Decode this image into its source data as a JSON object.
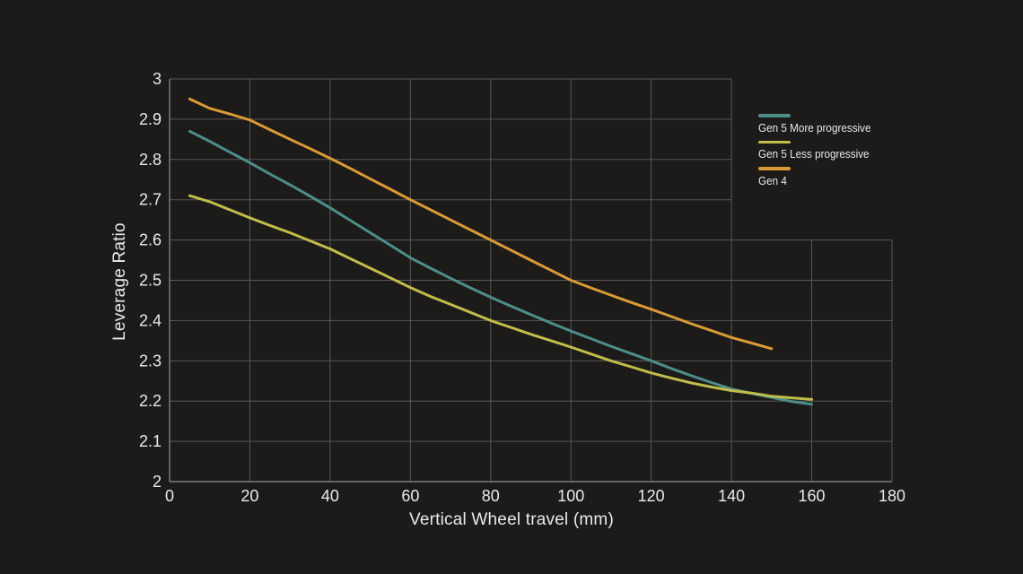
{
  "colors": {
    "background": "#1c1b19",
    "grid": "#585858",
    "axis": "#8f8f8f",
    "text": "#eaeaea"
  },
  "chart_data": {
    "type": "line",
    "title": "",
    "xlabel": "Vertical Wheel travel (mm)",
    "ylabel": "Leverage Ratio",
    "xlim": [
      0,
      180
    ],
    "ylim": [
      2,
      3
    ],
    "grid": "on",
    "grid_break": {
      "x": 140,
      "y": 2.6
    },
    "legend_position": "top-right",
    "xticks": {
      "values": [
        0,
        20,
        40,
        60,
        80,
        100,
        120,
        140,
        160,
        180
      ],
      "labels": [
        "0",
        "20",
        "40",
        "60",
        "80",
        "100",
        "120",
        "140",
        "160",
        "180"
      ]
    },
    "yticks": {
      "values": [
        2,
        2.1,
        2.2,
        2.3,
        2.4,
        2.5,
        2.6,
        2.7,
        2.8,
        2.9,
        3
      ],
      "labels": [
        "2",
        "2.1",
        "2.2",
        "2.3",
        "2.4",
        "2.5",
        "2.6",
        "2.7",
        "2.8",
        "2.9",
        "3"
      ]
    },
    "series": [
      {
        "name": "Gen 5 More progressive",
        "color": "#4d8e89",
        "x": [
          5,
          10,
          15,
          20,
          25,
          30,
          35,
          40,
          45,
          50,
          55,
          60,
          65,
          70,
          75,
          80,
          85,
          90,
          95,
          100,
          105,
          110,
          115,
          120,
          125,
          130,
          135,
          140,
          145,
          150,
          155,
          160
        ],
        "y": [
          2.87,
          2.845,
          2.818,
          2.792,
          2.764,
          2.737,
          2.709,
          2.68,
          2.649,
          2.618,
          2.587,
          2.556,
          2.53,
          2.505,
          2.481,
          2.458,
          2.436,
          2.415,
          2.394,
          2.374,
          2.355,
          2.336,
          2.318,
          2.3,
          2.281,
          2.263,
          2.246,
          2.23,
          2.219,
          2.209,
          2.199,
          2.192
        ]
      },
      {
        "name": "Gen 5 Less progressive",
        "color": "#c1bd4b",
        "x": [
          5,
          10,
          15,
          20,
          25,
          30,
          35,
          40,
          45,
          50,
          55,
          60,
          65,
          70,
          75,
          80,
          85,
          90,
          95,
          100,
          105,
          110,
          115,
          120,
          125,
          130,
          135,
          140,
          145,
          150,
          155,
          160
        ],
        "y": [
          2.71,
          2.695,
          2.675,
          2.655,
          2.636,
          2.618,
          2.598,
          2.578,
          2.554,
          2.53,
          2.506,
          2.482,
          2.46,
          2.44,
          2.42,
          2.4,
          2.383,
          2.366,
          2.35,
          2.334,
          2.317,
          2.3,
          2.285,
          2.27,
          2.257,
          2.245,
          2.235,
          2.226,
          2.22,
          2.212,
          2.208,
          2.204
        ]
      },
      {
        "name": "Gen 4",
        "color": "#db9a35",
        "x": [
          5,
          10,
          15,
          20,
          25,
          30,
          35,
          40,
          45,
          50,
          55,
          60,
          65,
          70,
          75,
          80,
          85,
          90,
          95,
          100,
          105,
          110,
          115,
          120,
          125,
          130,
          135,
          140,
          145,
          150
        ],
        "y": [
          2.95,
          2.927,
          2.913,
          2.898,
          2.874,
          2.85,
          2.827,
          2.803,
          2.778,
          2.752,
          2.726,
          2.7,
          2.675,
          2.65,
          2.625,
          2.6,
          2.575,
          2.55,
          2.525,
          2.5,
          2.481,
          2.463,
          2.445,
          2.428,
          2.41,
          2.392,
          2.375,
          2.358,
          2.344,
          2.33
        ]
      }
    ]
  }
}
